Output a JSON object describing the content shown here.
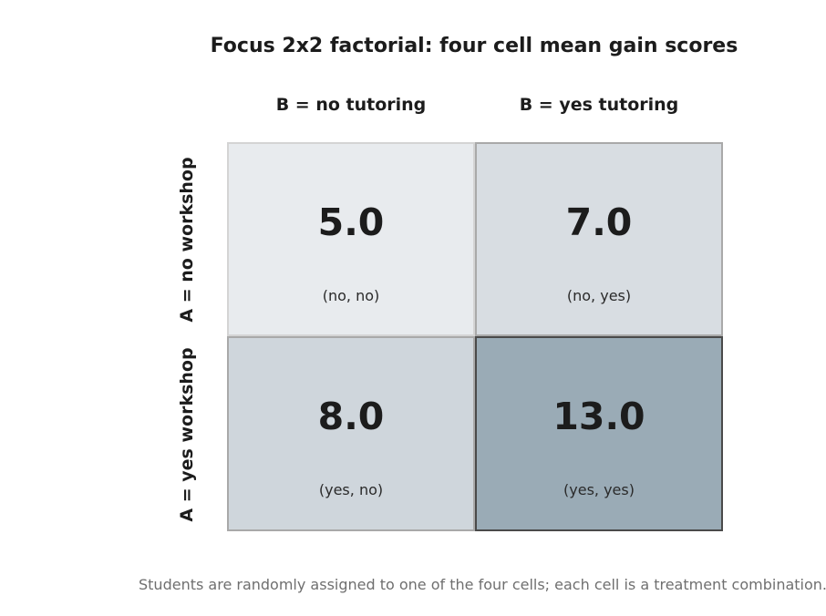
{
  "title": "Focus 2x2 factorial: four cell mean gain scores",
  "columns": [
    {
      "label": "B = no tutoring"
    },
    {
      "label": "B = yes tutoring"
    }
  ],
  "rows": [
    {
      "label": "A = no workshop"
    },
    {
      "label": "A = yes workshop"
    }
  ],
  "cells": [
    [
      {
        "value": "5.0",
        "combo": "(no, no)",
        "color": "#e8ebee"
      },
      {
        "value": "7.0",
        "combo": "(no, yes)",
        "color": "#d8dde2"
      }
    ],
    [
      {
        "value": "8.0",
        "combo": "(yes, no)",
        "color": "#cfd6dc"
      },
      {
        "value": "13.0",
        "combo": "(yes, yes)",
        "color": "#9aabb6"
      }
    ]
  ],
  "footnote": "Students are randomly assigned to one of the four cells; each cell is a treatment combination."
}
